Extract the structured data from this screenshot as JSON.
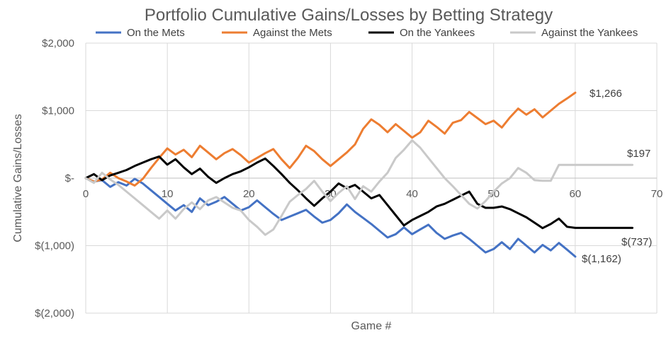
{
  "chart_data": {
    "type": "line",
    "title": "Portfolio Cumulative Gains/Losses by Betting Strategy",
    "xlabel": "Game #",
    "ylabel": "Cumulative Gains/Losses",
    "xlim": [
      0,
      70
    ],
    "ylim": [
      -2000,
      2000
    ],
    "x_ticks": [
      0,
      10,
      20,
      30,
      40,
      50,
      60,
      70
    ],
    "x_tick_labels": [
      "0",
      "10",
      "20",
      "30",
      "40",
      "50",
      "60",
      "70"
    ],
    "y_ticks": [
      2000,
      1000,
      0,
      -1000,
      -2000
    ],
    "y_tick_labels": [
      "$2,000",
      "$1,000",
      "$-",
      "$(1,000)",
      "$(2,000)"
    ],
    "grid": true,
    "legend": "top",
    "series": [
      {
        "name": "On the Mets",
        "color": "#4472C4",
        "x": [
          0,
          1,
          2,
          3,
          4,
          5,
          6,
          7,
          8,
          9,
          10,
          11,
          12,
          13,
          14,
          15,
          16,
          17,
          18,
          19,
          20,
          21,
          22,
          23,
          24,
          25,
          26,
          27,
          28,
          29,
          30,
          31,
          32,
          33,
          34,
          35,
          36,
          37,
          38,
          39,
          40,
          41,
          42,
          43,
          44,
          45,
          46,
          47,
          48,
          49,
          50,
          51,
          52,
          53,
          54,
          55,
          56,
          57,
          58,
          59,
          60
        ],
        "values": [
          0,
          -50,
          -30,
          -130,
          -60,
          -110,
          -10,
          -80,
          -180,
          -280,
          -380,
          -480,
          -400,
          -500,
          -300,
          -400,
          -350,
          -280,
          -380,
          -480,
          -430,
          -330,
          -430,
          -530,
          -620,
          -570,
          -520,
          -470,
          -570,
          -660,
          -620,
          -520,
          -390,
          -500,
          -590,
          -680,
          -780,
          -880,
          -830,
          -730,
          -830,
          -760,
          -690,
          -810,
          -900,
          -850,
          -810,
          -900,
          -1000,
          -1100,
          -1050,
          -950,
          -1050,
          -900,
          -1000,
          -1100,
          -990,
          -1070,
          -960,
          -1060,
          -1162
        ]
      },
      {
        "name": "Against the Mets",
        "color": "#ED7D31",
        "x": [
          0,
          1,
          2,
          3,
          4,
          5,
          6,
          7,
          8,
          9,
          10,
          11,
          12,
          13,
          14,
          15,
          16,
          17,
          18,
          19,
          20,
          21,
          22,
          23,
          24,
          25,
          26,
          27,
          28,
          29,
          30,
          31,
          32,
          33,
          34,
          35,
          36,
          37,
          38,
          39,
          40,
          41,
          42,
          43,
          44,
          45,
          46,
          47,
          48,
          49,
          50,
          51,
          52,
          53,
          54,
          55,
          56,
          57,
          58,
          59,
          60
        ],
        "values": [
          0,
          -50,
          -20,
          80,
          0,
          -50,
          -110,
          -10,
          150,
          300,
          440,
          350,
          420,
          310,
          480,
          380,
          280,
          370,
          430,
          340,
          230,
          300,
          370,
          430,
          280,
          150,
          300,
          480,
          400,
          280,
          180,
          280,
          380,
          500,
          730,
          870,
          790,
          680,
          800,
          700,
          600,
          680,
          850,
          760,
          660,
          820,
          860,
          980,
          890,
          800,
          850,
          750,
          900,
          1030,
          940,
          1020,
          900,
          1000,
          1100,
          1180,
          1266
        ]
      },
      {
        "name": "On the Yankees",
        "color": "#000000",
        "x": [
          0,
          1,
          2,
          3,
          4,
          5,
          6,
          7,
          8,
          9,
          10,
          11,
          12,
          13,
          14,
          15,
          16,
          17,
          18,
          19,
          20,
          21,
          22,
          23,
          24,
          25,
          26,
          27,
          28,
          29,
          30,
          31,
          32,
          33,
          34,
          35,
          36,
          37,
          38,
          39,
          40,
          41,
          42,
          43,
          44,
          45,
          46,
          47,
          48,
          49,
          50,
          51,
          52,
          53,
          54,
          55,
          56,
          57,
          58,
          59,
          60,
          61,
          62,
          63,
          64,
          65,
          66,
          67
        ],
        "values": [
          0,
          60,
          -30,
          40,
          80,
          120,
          180,
          230,
          280,
          320,
          200,
          280,
          160,
          60,
          140,
          20,
          -70,
          0,
          60,
          100,
          160,
          230,
          290,
          180,
          60,
          -70,
          -180,
          -300,
          -410,
          -300,
          -200,
          -80,
          -150,
          -100,
          -200,
          -300,
          -250,
          -400,
          -550,
          -700,
          -620,
          -560,
          -500,
          -420,
          -380,
          -320,
          -260,
          -200,
          -380,
          -440,
          -440,
          -420,
          -460,
          -520,
          -580,
          -660,
          -740,
          -680,
          -600,
          -720,
          -737,
          -737,
          -737,
          -737,
          -737,
          -737,
          -737,
          -737
        ]
      },
      {
        "name": "Against the Yankees",
        "color": "#C9C9C9",
        "x": [
          0,
          1,
          2,
          3,
          4,
          5,
          6,
          7,
          8,
          9,
          10,
          11,
          12,
          13,
          14,
          15,
          16,
          17,
          18,
          19,
          20,
          21,
          22,
          23,
          24,
          25,
          26,
          27,
          28,
          29,
          30,
          31,
          32,
          33,
          34,
          35,
          36,
          37,
          38,
          39,
          40,
          41,
          42,
          43,
          44,
          45,
          46,
          47,
          48,
          49,
          50,
          51,
          52,
          53,
          54,
          55,
          56,
          57,
          58,
          59,
          60,
          61,
          62,
          63,
          64,
          65,
          66,
          67
        ],
        "values": [
          0,
          -70,
          80,
          -20,
          -100,
          -200,
          -300,
          -400,
          -500,
          -600,
          -480,
          -600,
          -460,
          -360,
          -460,
          -330,
          -280,
          -360,
          -440,
          -480,
          -620,
          -720,
          -840,
          -760,
          -560,
          -350,
          -250,
          -160,
          -40,
          -200,
          -340,
          -220,
          -120,
          -310,
          -120,
          -200,
          -50,
          80,
          300,
          420,
          560,
          450,
          300,
          150,
          0,
          -120,
          -250,
          -380,
          -450,
          -340,
          -200,
          -80,
          0,
          150,
          80,
          -30,
          -40,
          -40,
          197,
          197,
          197,
          197,
          197,
          197,
          197,
          197,
          197,
          197
        ]
      }
    ],
    "end_labels": [
      "$1,266",
      "$197",
      "$(737)",
      "$(1,162)"
    ]
  }
}
